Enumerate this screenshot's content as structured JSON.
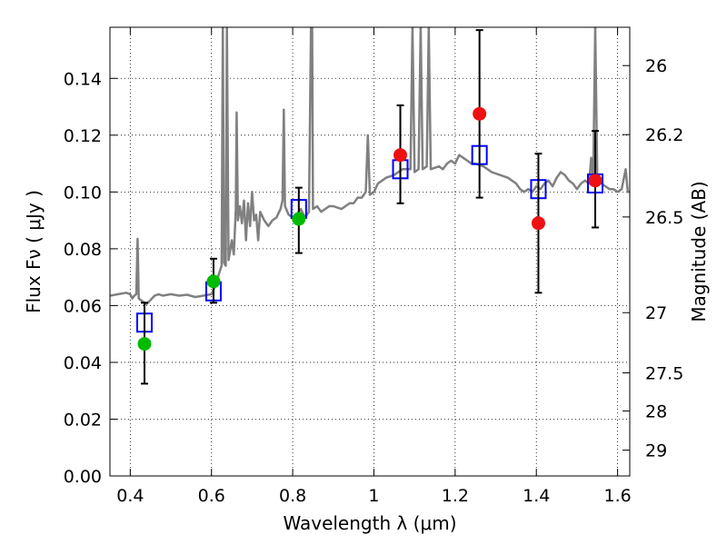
{
  "chart_data": {
    "type": "scatter",
    "title": "",
    "xlabel": "Wavelength  λ (μm)",
    "ylabel": "Flux  Fν ( μJy )",
    "ylabel_right": "Magnitude (AB)",
    "xlim": [
      0.35,
      1.63
    ],
    "ylim": [
      0.0,
      0.158
    ],
    "grid": true,
    "x_ticks": [
      0.4,
      0.6,
      0.8,
      1.0,
      1.2,
      1.4,
      1.6
    ],
    "x_tick_labels": [
      "0.4",
      "0.6",
      "0.8",
      "1",
      "1.2",
      "1.4",
      "1.6"
    ],
    "y_ticks": [
      0.0,
      0.02,
      0.04,
      0.06,
      0.08,
      0.1,
      0.12,
      0.14
    ],
    "y_tick_labels": [
      "0.00",
      "0.02",
      "0.04",
      "0.06",
      "0.08",
      "0.10",
      "0.12",
      "0.14"
    ],
    "mag_ticks": [
      {
        "label": "26",
        "flux": 0.1445
      },
      {
        "label": "26.2",
        "flux": 0.1202
      },
      {
        "label": "26.5",
        "flux": 0.0912
      },
      {
        "label": "27",
        "flux": 0.0575
      },
      {
        "label": "27.5",
        "flux": 0.0363
      },
      {
        "label": "28",
        "flux": 0.0229
      },
      {
        "label": "29",
        "flux": 0.0091
      }
    ],
    "series": [
      {
        "name": "model spectrum",
        "kind": "line",
        "color": "#808080",
        "points": [
          [
            0.35,
            0.0635
          ],
          [
            0.37,
            0.064
          ],
          [
            0.39,
            0.0645
          ],
          [
            0.4,
            0.064
          ],
          [
            0.405,
            0.0625
          ],
          [
            0.41,
            0.0635
          ],
          [
            0.415,
            0.064
          ],
          [
            0.418,
            0.0835
          ],
          [
            0.421,
            0.0625
          ],
          [
            0.43,
            0.0615
          ],
          [
            0.44,
            0.0605
          ],
          [
            0.45,
            0.062
          ],
          [
            0.46,
            0.0635
          ],
          [
            0.47,
            0.064
          ],
          [
            0.48,
            0.0635
          ],
          [
            0.5,
            0.064
          ],
          [
            0.52,
            0.0635
          ],
          [
            0.54,
            0.0638
          ],
          [
            0.56,
            0.063
          ],
          [
            0.58,
            0.0635
          ],
          [
            0.6,
            0.064
          ],
          [
            0.61,
            0.067
          ],
          [
            0.62,
            0.072
          ],
          [
            0.625,
            0.074
          ],
          [
            0.628,
            0.158
          ],
          [
            0.631,
            0.075
          ],
          [
            0.635,
            0.074
          ],
          [
            0.638,
            0.158
          ],
          [
            0.642,
            0.076
          ],
          [
            0.65,
            0.083
          ],
          [
            0.655,
            0.078
          ],
          [
            0.66,
            0.094
          ],
          [
            0.662,
            0.128
          ],
          [
            0.665,
            0.09
          ],
          [
            0.67,
            0.095
          ],
          [
            0.675,
            0.089
          ],
          [
            0.68,
            0.097
          ],
          [
            0.685,
            0.083
          ],
          [
            0.69,
            0.096
          ],
          [
            0.695,
            0.088
          ],
          [
            0.7,
            0.1
          ],
          [
            0.705,
            0.09
          ],
          [
            0.71,
            0.092
          ],
          [
            0.715,
            0.083
          ],
          [
            0.72,
            0.093
          ],
          [
            0.73,
            0.09
          ],
          [
            0.74,
            0.088
          ],
          [
            0.75,
            0.09
          ],
          [
            0.76,
            0.091
          ],
          [
            0.77,
            0.094
          ],
          [
            0.775,
            0.097
          ],
          [
            0.778,
            0.129
          ],
          [
            0.781,
            0.095
          ],
          [
            0.79,
            0.092
          ],
          [
            0.8,
            0.091
          ],
          [
            0.81,
            0.092
          ],
          [
            0.82,
            0.094
          ],
          [
            0.83,
            0.091
          ],
          [
            0.84,
            0.093
          ],
          [
            0.845,
            0.158
          ],
          [
            0.848,
            0.158
          ],
          [
            0.85,
            0.094
          ],
          [
            0.86,
            0.095
          ],
          [
            0.87,
            0.093
          ],
          [
            0.88,
            0.094
          ],
          [
            0.89,
            0.095
          ],
          [
            0.9,
            0.095
          ],
          [
            0.92,
            0.094
          ],
          [
            0.94,
            0.096
          ],
          [
            0.95,
            0.096
          ],
          [
            0.96,
            0.098
          ],
          [
            0.97,
            0.098
          ],
          [
            0.98,
            0.1
          ],
          [
            0.985,
            0.12
          ],
          [
            0.99,
            0.099
          ],
          [
            1.0,
            0.1
          ],
          [
            1.01,
            0.103
          ],
          [
            1.03,
            0.105
          ],
          [
            1.05,
            0.106
          ],
          [
            1.07,
            0.108
          ],
          [
            1.09,
            0.108
          ],
          [
            1.095,
            0.158
          ],
          [
            1.1,
            0.107
          ],
          [
            1.11,
            0.108
          ],
          [
            1.115,
            0.158
          ],
          [
            1.12,
            0.108
          ],
          [
            1.13,
            0.109
          ],
          [
            1.135,
            0.158
          ],
          [
            1.14,
            0.108
          ],
          [
            1.16,
            0.109
          ],
          [
            1.17,
            0.108
          ],
          [
            1.18,
            0.11
          ],
          [
            1.19,
            0.111
          ],
          [
            1.2,
            0.11
          ],
          [
            1.21,
            0.113
          ],
          [
            1.22,
            0.112
          ],
          [
            1.23,
            0.111
          ],
          [
            1.24,
            0.11
          ],
          [
            1.25,
            0.11
          ],
          [
            1.27,
            0.109
          ],
          [
            1.29,
            0.107
          ],
          [
            1.31,
            0.106
          ],
          [
            1.33,
            0.105
          ],
          [
            1.35,
            0.103
          ],
          [
            1.36,
            0.101
          ],
          [
            1.37,
            0.1
          ],
          [
            1.38,
            0.101
          ],
          [
            1.39,
            0.1
          ],
          [
            1.4,
            0.102
          ],
          [
            1.41,
            0.101
          ],
          [
            1.42,
            0.103
          ],
          [
            1.43,
            0.104
          ],
          [
            1.44,
            0.102
          ],
          [
            1.45,
            0.105
          ],
          [
            1.46,
            0.107
          ],
          [
            1.47,
            0.106
          ],
          [
            1.48,
            0.104
          ],
          [
            1.49,
            0.103
          ],
          [
            1.5,
            0.101
          ],
          [
            1.51,
            0.103
          ],
          [
            1.52,
            0.104
          ],
          [
            1.53,
            0.103
          ],
          [
            1.535,
            0.112
          ],
          [
            1.54,
            0.104
          ],
          [
            1.545,
            0.158
          ],
          [
            1.55,
            0.104
          ],
          [
            1.56,
            0.103
          ],
          [
            1.57,
            0.102
          ],
          [
            1.58,
            0.101
          ],
          [
            1.59,
            0.101
          ],
          [
            1.6,
            0.1
          ],
          [
            1.61,
            0.101
          ],
          [
            1.62,
            0.108
          ],
          [
            1.625,
            0.1
          ],
          [
            1.63,
            0.1
          ]
        ]
      },
      {
        "name": "model photometry",
        "kind": "open-square",
        "color": "#0000ff",
        "points": [
          [
            0.435,
            0.054
          ],
          [
            0.605,
            0.065
          ],
          [
            0.815,
            0.094
          ],
          [
            1.065,
            0.108
          ],
          [
            1.26,
            0.113
          ],
          [
            1.405,
            0.101
          ],
          [
            1.545,
            0.103
          ]
        ]
      },
      {
        "name": "observed (green)",
        "kind": "filled-circle",
        "color": "#00bb00",
        "points": [
          {
            "x": 0.435,
            "y": 0.0465,
            "err_lo": 0.0325,
            "err_hi": 0.061
          },
          {
            "x": 0.605,
            "y": 0.0685,
            "err_lo": 0.061,
            "err_hi": 0.0765
          },
          {
            "x": 0.815,
            "y": 0.0905,
            "err_lo": 0.0785,
            "err_hi": 0.1015
          }
        ]
      },
      {
        "name": "observed (red)",
        "kind": "filled-circle",
        "color": "#ee1111",
        "points": [
          {
            "x": 1.065,
            "y": 0.113,
            "err_lo": 0.096,
            "err_hi": 0.1305
          },
          {
            "x": 1.26,
            "y": 0.1275,
            "err_lo": 0.098,
            "err_hi": 0.157
          },
          {
            "x": 1.405,
            "y": 0.089,
            "err_lo": 0.0645,
            "err_hi": 0.1135
          },
          {
            "x": 1.545,
            "y": 0.104,
            "err_lo": 0.0875,
            "err_hi": 0.1215
          }
        ]
      }
    ]
  }
}
